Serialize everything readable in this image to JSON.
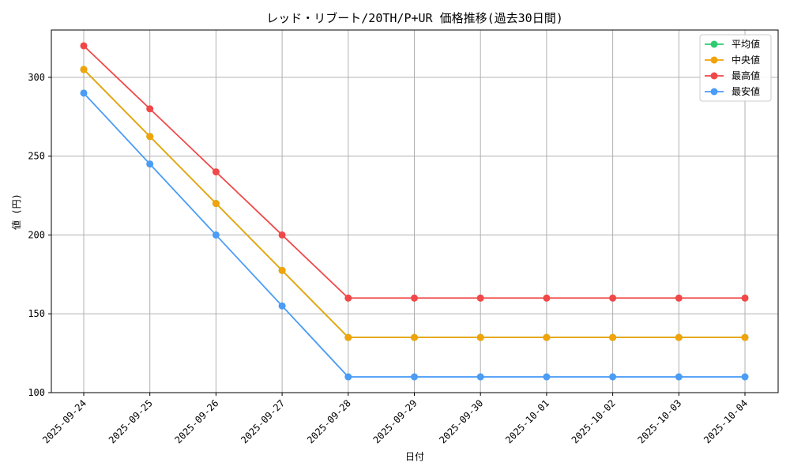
{
  "chart_data": {
    "type": "line",
    "title": "レッド・リブート/20TH/P+UR 価格推移(過去30日間)",
    "xlabel": "日付",
    "ylabel": "値 (円)",
    "categories": [
      "2025-09-24",
      "2025-09-25",
      "2025-09-26",
      "2025-09-27",
      "2025-09-28",
      "2025-09-29",
      "2025-09-30",
      "2025-10-01",
      "2025-10-02",
      "2025-10-03",
      "2025-10-04"
    ],
    "ylim": [
      100,
      330
    ],
    "yticks": [
      100,
      150,
      200,
      250,
      300
    ],
    "grid": true,
    "legend_position": "top-right",
    "series": [
      {
        "name": "平均値",
        "color": "#2ecc71",
        "values": [
          305,
          262.5,
          220,
          177.5,
          135,
          135,
          135,
          135,
          135,
          135,
          135
        ]
      },
      {
        "name": "中央値",
        "color": "#f0a30a",
        "values": [
          305,
          262.5,
          220,
          177.5,
          135,
          135,
          135,
          135,
          135,
          135,
          135
        ]
      },
      {
        "name": "最高値",
        "color": "#f04848",
        "values": [
          320,
          280,
          240,
          200,
          160,
          160,
          160,
          160,
          160,
          160,
          160
        ]
      },
      {
        "name": "最安値",
        "color": "#4a9cf5",
        "values": [
          290,
          245,
          200,
          155,
          110,
          110,
          110,
          110,
          110,
          110,
          110
        ]
      }
    ]
  }
}
